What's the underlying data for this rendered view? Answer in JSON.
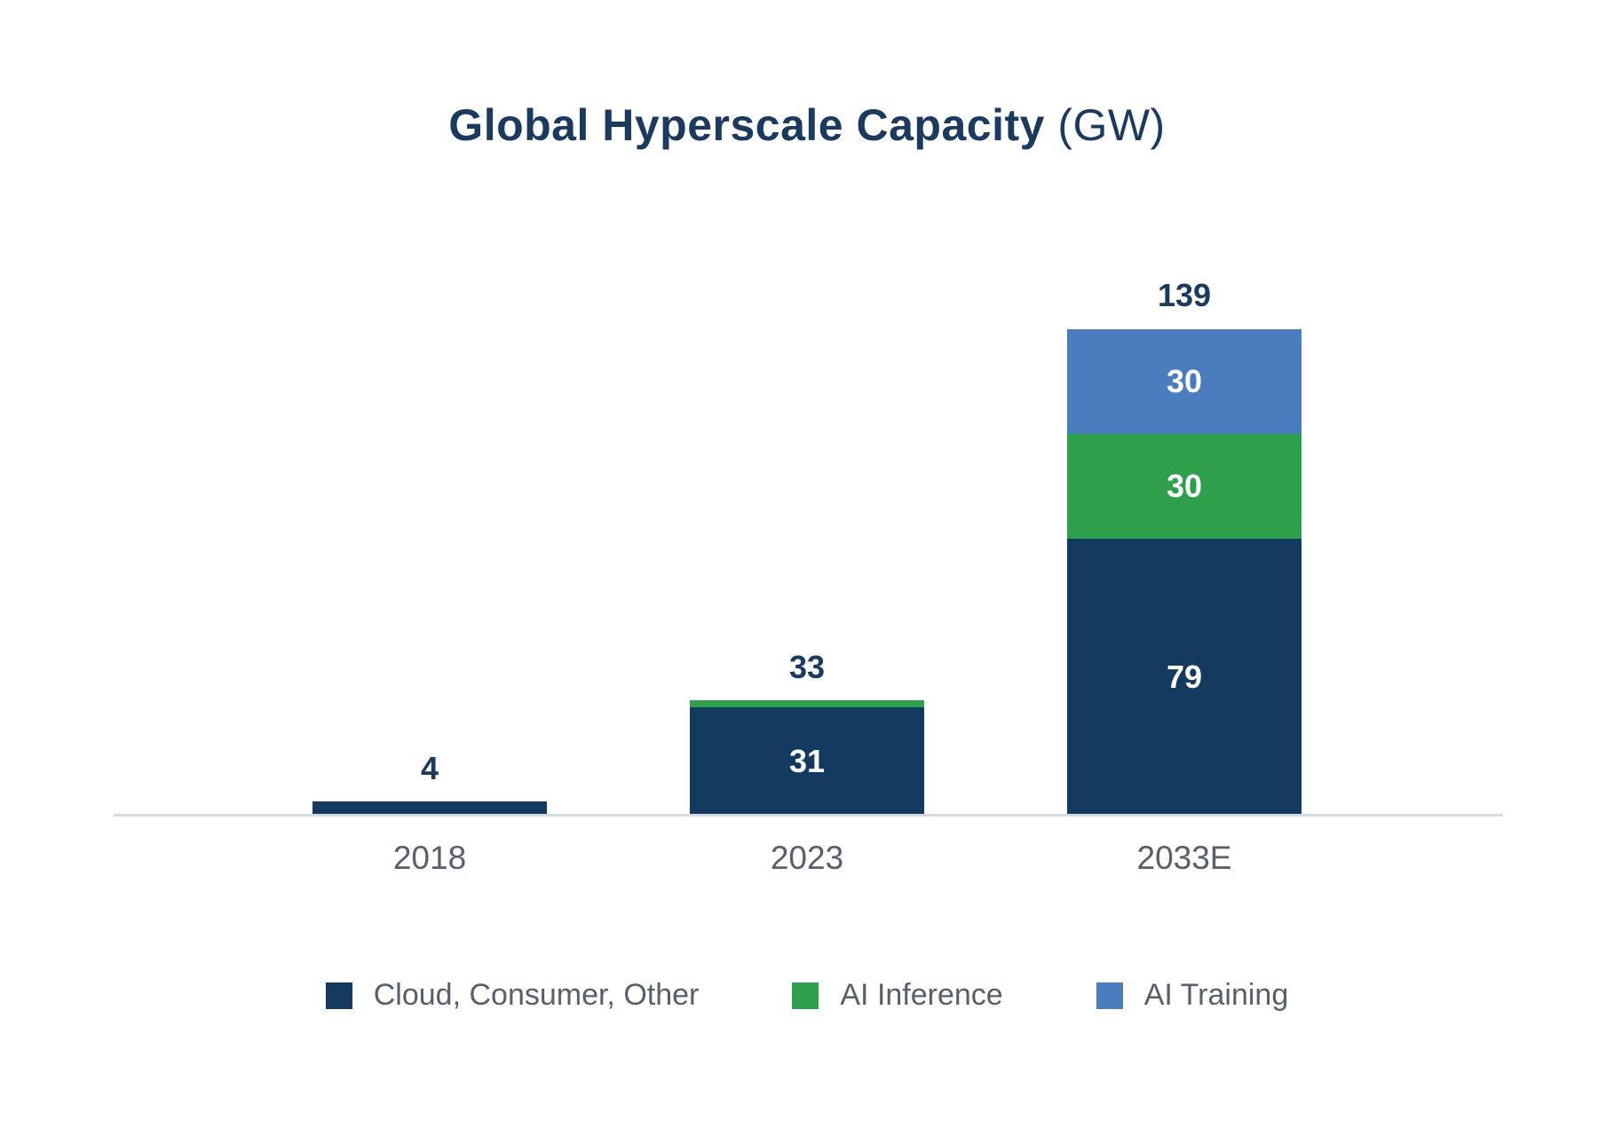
{
  "title": {
    "main": "Global Hyperscale Capacity",
    "suffix": " (GW)"
  },
  "chart_data": {
    "type": "bar",
    "stacked": true,
    "title": "Global Hyperscale Capacity (GW)",
    "unit": "GW",
    "xlabel": "",
    "ylabel": "",
    "grid": false,
    "legend_position": "bottom",
    "categories": [
      "2018",
      "2023",
      "2033E"
    ],
    "series": [
      {
        "name": "Cloud, Consumer, Other",
        "color": "#14395E",
        "values": [
          4,
          31,
          79
        ]
      },
      {
        "name": "AI Inference",
        "color": "#2E9F4B",
        "values": [
          0,
          2,
          30
        ]
      },
      {
        "name": "AI Training",
        "color": "#4A7CBE",
        "values": [
          0,
          0,
          30
        ]
      }
    ],
    "totals": [
      4,
      33,
      139
    ],
    "total_labels": [
      "4",
      "33",
      "139"
    ],
    "segment_label_min_value": 8,
    "ylim": [
      0,
      139
    ],
    "colors": {
      "value_label": "#1B3A5E",
      "category_label": "#565F6B",
      "axis_line": "#D3DAE3"
    }
  }
}
